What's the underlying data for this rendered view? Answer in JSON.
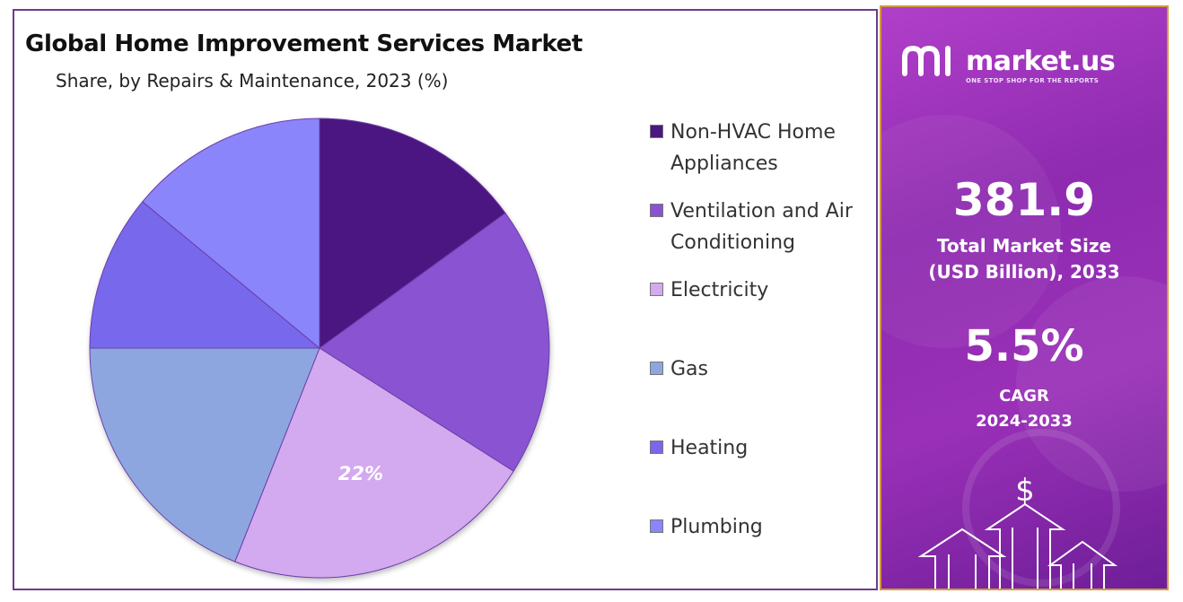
{
  "chart_data": {
    "type": "pie",
    "title": "Global Home Improvement  Services Market",
    "subtitle": "Share, by Repairs & Maintenance, 2023 (%)",
    "categories": [
      "Non-HVAC Home Appliances",
      "Ventilation and Air Conditioning",
      "Electricity",
      "Gas",
      "Heating",
      "Plumbing"
    ],
    "values": [
      15,
      19,
      22,
      19,
      11,
      14
    ],
    "colors": [
      "#4b1781",
      "#8a52d2",
      "#d3a9ef",
      "#8ea6e0",
      "#7868ec",
      "#8b85fb"
    ],
    "data_labels": [
      "",
      "",
      "22%",
      "",
      "",
      ""
    ],
    "legend_position": "right"
  },
  "panel": {
    "brand_name": "market.us",
    "brand_tagline": "ONE STOP SHOP FOR THE REPORTS",
    "market_size_value": "381.9",
    "market_size_label_line1": "Total Market Size",
    "market_size_label_line2": "(USD Billion), 2033",
    "cagr_value": "5.5%",
    "cagr_label_line1": "CAGR",
    "cagr_label_line2": "2024-2033",
    "icons": [
      "market-us-logo-icon",
      "dollar-icon",
      "up-arrow-icon"
    ]
  }
}
